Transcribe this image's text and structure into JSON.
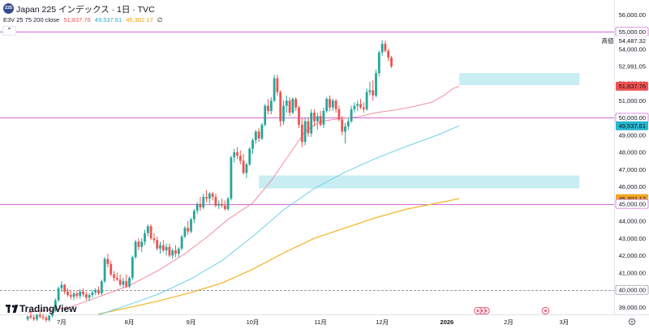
{
  "header": {
    "symbol_badge": "225",
    "title": "Japan 225 インデックス · 1日 · TVC",
    "indicator_label": "E3V 25 75 200 close",
    "ema25_value": "51,837.76",
    "ema75_value": "49,537.61",
    "ema200_value": "45,302.17",
    "settings_glyph": "∅"
  },
  "logo": {
    "text": "TradingView"
  },
  "colors": {
    "up": "#26a69a",
    "down": "#ef5350",
    "ema25": "#f28ea0",
    "ema75": "#6fd0e8",
    "ema200": "#f5b21f",
    "hline": "#d46ad8",
    "zone": "#c8eef3"
  },
  "chart_data": {
    "type": "candlestick",
    "symbol": "Japan 225",
    "timeframe": "1日",
    "ylim": [
      38500,
      56200
    ],
    "y_ticks": [
      39000,
      40000,
      41000,
      42000,
      43000,
      44000,
      45000,
      46000,
      47000,
      48000,
      49000,
      50000,
      51000,
      52000,
      53000,
      54000,
      55000,
      56000
    ],
    "y_tick_labels": [
      "39,000.00",
      "40,000.00",
      "41,000.00",
      "42,000.00",
      "43,000.00",
      "44,000.00",
      "45,000.00",
      "46,000.00",
      "47,000.00",
      "48,000.00",
      "49,000.00",
      "50,000.00",
      "51,000.00",
      "52,000.00",
      "53,000.00",
      "54,000.00",
      "55,000.00",
      "56,000.00"
    ],
    "x_labels": [
      {
        "label": "7月",
        "bar": 18
      },
      {
        "label": "8月",
        "bar": 40
      },
      {
        "label": "9月",
        "bar": 60
      },
      {
        "label": "10月",
        "bar": 80
      },
      {
        "label": "11月",
        "bar": 102
      },
      {
        "label": "12月",
        "bar": 122
      },
      {
        "label": "2026",
        "bar": 143
      },
      {
        "label": "2月",
        "bar": 163
      },
      {
        "label": "3月",
        "bar": 181
      }
    ],
    "price_tags": [
      {
        "label": "55,000.00",
        "value": 55000,
        "style": "hline"
      },
      {
        "label": "54,487.32",
        "value": 54487.32,
        "style": "high",
        "prefix": "高値"
      },
      {
        "label": "52,991.05",
        "value": 52991.05,
        "style": "last"
      },
      {
        "label": "51,837.76",
        "value": 51837.76,
        "style": "ema25"
      },
      {
        "label": "50,000.00",
        "value": 50000,
        "style": "hline"
      },
      {
        "label": "49,537.61",
        "value": 49537.61,
        "style": "ema75"
      },
      {
        "label": "45,302.17",
        "value": 45302.17,
        "style": "ema200"
      },
      {
        "label": "45,000.00",
        "value": 45000,
        "style": "hline"
      },
      {
        "label": "40,000.00",
        "value": 40000,
        "style": "dashed"
      }
    ],
    "horizontal_lines": [
      {
        "value": 55000,
        "style": "solid"
      },
      {
        "value": 50000,
        "style": "solid"
      },
      {
        "value": 45000,
        "style": "solid"
      },
      {
        "value": 40000,
        "style": "dashed"
      }
    ],
    "zones": [
      {
        "from_bar": 147,
        "to_bar": 186,
        "low": 51900,
        "high": 52600
      },
      {
        "from_bar": 82,
        "to_bar": 186,
        "low": 45900,
        "high": 46650
      }
    ],
    "events": [
      {
        "bar": 153,
        "count": 3
      },
      {
        "bar": 175,
        "count": 1
      }
    ],
    "start_bar": 7,
    "candles": [
      {
        "o": 38300,
        "h": 38500,
        "l": 38200,
        "c": 38450
      },
      {
        "o": 38500,
        "h": 38700,
        "l": 38300,
        "c": 38400
      },
      {
        "o": 38400,
        "h": 38550,
        "l": 38200,
        "c": 38300
      },
      {
        "o": 38300,
        "h": 38600,
        "l": 38200,
        "c": 38550
      },
      {
        "o": 38550,
        "h": 38700,
        "l": 38350,
        "c": 38450
      },
      {
        "o": 38450,
        "h": 38600,
        "l": 38250,
        "c": 38380
      },
      {
        "o": 38380,
        "h": 38500,
        "l": 38150,
        "c": 38250
      },
      {
        "o": 38250,
        "h": 38550,
        "l": 38150,
        "c": 38500
      },
      {
        "o": 38500,
        "h": 38750,
        "l": 38400,
        "c": 38650
      },
      {
        "o": 38800,
        "h": 39500,
        "l": 38700,
        "c": 39400
      },
      {
        "o": 39400,
        "h": 40200,
        "l": 39300,
        "c": 40100
      },
      {
        "o": 40100,
        "h": 40500,
        "l": 39900,
        "c": 40300
      },
      {
        "o": 40300,
        "h": 40350,
        "l": 39750,
        "c": 39900
      },
      {
        "o": 39900,
        "h": 40100,
        "l": 39600,
        "c": 39700
      },
      {
        "o": 39700,
        "h": 40000,
        "l": 39450,
        "c": 39600
      },
      {
        "o": 39600,
        "h": 39900,
        "l": 39400,
        "c": 39800
      },
      {
        "o": 39800,
        "h": 39950,
        "l": 39500,
        "c": 39650
      },
      {
        "o": 39650,
        "h": 40050,
        "l": 39500,
        "c": 39900
      },
      {
        "o": 39900,
        "h": 40100,
        "l": 39600,
        "c": 39750
      },
      {
        "o": 39750,
        "h": 39900,
        "l": 39400,
        "c": 39550
      },
      {
        "o": 39550,
        "h": 39800,
        "l": 39350,
        "c": 39700
      },
      {
        "o": 39700,
        "h": 40000,
        "l": 39550,
        "c": 39850
      },
      {
        "o": 39850,
        "h": 40100,
        "l": 39700,
        "c": 40000
      },
      {
        "o": 40000,
        "h": 40200,
        "l": 39700,
        "c": 39800
      },
      {
        "o": 39800,
        "h": 40600,
        "l": 39700,
        "c": 40500
      },
      {
        "o": 40500,
        "h": 41900,
        "l": 40400,
        "c": 41800
      },
      {
        "o": 41800,
        "h": 42100,
        "l": 41300,
        "c": 41500
      },
      {
        "o": 41500,
        "h": 41700,
        "l": 40800,
        "c": 40900
      },
      {
        "o": 40900,
        "h": 41100,
        "l": 40500,
        "c": 40700
      },
      {
        "o": 40700,
        "h": 41000,
        "l": 40500,
        "c": 40600
      },
      {
        "o": 40600,
        "h": 40900,
        "l": 40200,
        "c": 40300
      },
      {
        "o": 40300,
        "h": 40700,
        "l": 40100,
        "c": 40500
      },
      {
        "o": 40500,
        "h": 40900,
        "l": 40100,
        "c": 40200
      },
      {
        "o": 40200,
        "h": 40800,
        "l": 40100,
        "c": 40700
      },
      {
        "o": 40700,
        "h": 42000,
        "l": 40600,
        "c": 41900
      },
      {
        "o": 41900,
        "h": 42900,
        "l": 41800,
        "c": 42800
      },
      {
        "o": 42800,
        "h": 43000,
        "l": 42300,
        "c": 42500
      },
      {
        "o": 42500,
        "h": 43000,
        "l": 42200,
        "c": 42800
      },
      {
        "o": 42800,
        "h": 43500,
        "l": 42600,
        "c": 43300
      },
      {
        "o": 43300,
        "h": 43800,
        "l": 43100,
        "c": 43700
      },
      {
        "o": 43700,
        "h": 43800,
        "l": 42900,
        "c": 43000
      },
      {
        "o": 43000,
        "h": 43300,
        "l": 42700,
        "c": 42900
      },
      {
        "o": 42900,
        "h": 43100,
        "l": 42300,
        "c": 42400
      },
      {
        "o": 42400,
        "h": 42800,
        "l": 42100,
        "c": 42600
      },
      {
        "o": 42600,
        "h": 42900,
        "l": 42200,
        "c": 42300
      },
      {
        "o": 42300,
        "h": 42700,
        "l": 42000,
        "c": 42500
      },
      {
        "o": 42500,
        "h": 42700,
        "l": 41900,
        "c": 42000
      },
      {
        "o": 42000,
        "h": 42400,
        "l": 41800,
        "c": 42300
      },
      {
        "o": 42300,
        "h": 42600,
        "l": 41900,
        "c": 42100
      },
      {
        "o": 42100,
        "h": 42500,
        "l": 41900,
        "c": 42400
      },
      {
        "o": 42400,
        "h": 43200,
        "l": 42300,
        "c": 43100
      },
      {
        "o": 43100,
        "h": 43700,
        "l": 43000,
        "c": 43600
      },
      {
        "o": 43600,
        "h": 44000,
        "l": 43200,
        "c": 43400
      },
      {
        "o": 43400,
        "h": 44200,
        "l": 43300,
        "c": 44100
      },
      {
        "o": 44100,
        "h": 44700,
        "l": 43900,
        "c": 44600
      },
      {
        "o": 44600,
        "h": 45100,
        "l": 44400,
        "c": 45000
      },
      {
        "o": 45000,
        "h": 45400,
        "l": 44600,
        "c": 44800
      },
      {
        "o": 44800,
        "h": 45600,
        "l": 44700,
        "c": 45400
      },
      {
        "o": 45400,
        "h": 45800,
        "l": 45100,
        "c": 45300
      },
      {
        "o": 45300,
        "h": 45700,
        "l": 45000,
        "c": 45600
      },
      {
        "o": 45600,
        "h": 45700,
        "l": 45200,
        "c": 45400
      },
      {
        "o": 45400,
        "h": 45600,
        "l": 44800,
        "c": 44900
      },
      {
        "o": 44900,
        "h": 45200,
        "l": 44700,
        "c": 45000
      },
      {
        "o": 45000,
        "h": 45300,
        "l": 44800,
        "c": 44900
      },
      {
        "o": 44900,
        "h": 45200,
        "l": 44600,
        "c": 44700
      },
      {
        "o": 44700,
        "h": 45400,
        "l": 44600,
        "c": 45300
      },
      {
        "o": 45300,
        "h": 47800,
        "l": 45200,
        "c": 47700
      },
      {
        "o": 47700,
        "h": 48200,
        "l": 47400,
        "c": 48000
      },
      {
        "o": 48000,
        "h": 48300,
        "l": 47600,
        "c": 47800
      },
      {
        "o": 47800,
        "h": 48100,
        "l": 47300,
        "c": 47500
      },
      {
        "o": 47500,
        "h": 47900,
        "l": 46700,
        "c": 46800
      },
      {
        "o": 46800,
        "h": 47400,
        "l": 46500,
        "c": 47300
      },
      {
        "o": 47300,
        "h": 48300,
        "l": 47200,
        "c": 48200
      },
      {
        "o": 48200,
        "h": 48800,
        "l": 47900,
        "c": 48700
      },
      {
        "o": 48700,
        "h": 49300,
        "l": 48500,
        "c": 49200
      },
      {
        "o": 49200,
        "h": 49400,
        "l": 48600,
        "c": 48800
      },
      {
        "o": 48800,
        "h": 49700,
        "l": 48700,
        "c": 49600
      },
      {
        "o": 49600,
        "h": 50800,
        "l": 49500,
        "c": 50700
      },
      {
        "o": 50700,
        "h": 51100,
        "l": 50200,
        "c": 50400
      },
      {
        "o": 50400,
        "h": 51200,
        "l": 50200,
        "c": 51000
      },
      {
        "o": 51000,
        "h": 52500,
        "l": 50900,
        "c": 52300
      },
      {
        "o": 52300,
        "h": 52500,
        "l": 51300,
        "c": 51500
      },
      {
        "o": 51500,
        "h": 51600,
        "l": 49500,
        "c": 49800
      },
      {
        "o": 49800,
        "h": 51000,
        "l": 49600,
        "c": 50700
      },
      {
        "o": 50700,
        "h": 51300,
        "l": 50300,
        "c": 51000
      },
      {
        "o": 51000,
        "h": 51200,
        "l": 50100,
        "c": 50300
      },
      {
        "o": 50300,
        "h": 51200,
        "l": 50200,
        "c": 51100
      },
      {
        "o": 51100,
        "h": 51200,
        "l": 50400,
        "c": 50600
      },
      {
        "o": 50600,
        "h": 50700,
        "l": 49400,
        "c": 49600
      },
      {
        "o": 49600,
        "h": 50000,
        "l": 48300,
        "c": 48600
      },
      {
        "o": 48600,
        "h": 50000,
        "l": 48400,
        "c": 49800
      },
      {
        "o": 49800,
        "h": 50000,
        "l": 48900,
        "c": 49100
      },
      {
        "o": 49100,
        "h": 50500,
        "l": 48900,
        "c": 50300
      },
      {
        "o": 50300,
        "h": 50500,
        "l": 49500,
        "c": 49800
      },
      {
        "o": 49800,
        "h": 50300,
        "l": 49300,
        "c": 50100
      },
      {
        "o": 50100,
        "h": 50400,
        "l": 49500,
        "c": 49600
      },
      {
        "o": 49600,
        "h": 50600,
        "l": 49400,
        "c": 50400
      },
      {
        "o": 50400,
        "h": 51200,
        "l": 50300,
        "c": 51100
      },
      {
        "o": 51100,
        "h": 51300,
        "l": 50400,
        "c": 50600
      },
      {
        "o": 50600,
        "h": 51100,
        "l": 50400,
        "c": 51000
      },
      {
        "o": 51000,
        "h": 51100,
        "l": 50300,
        "c": 50500
      },
      {
        "o": 50500,
        "h": 50700,
        "l": 49800,
        "c": 49900
      },
      {
        "o": 49900,
        "h": 50100,
        "l": 49000,
        "c": 49200
      },
      {
        "o": 49200,
        "h": 49700,
        "l": 48500,
        "c": 49500
      },
      {
        "o": 49500,
        "h": 50000,
        "l": 49300,
        "c": 49800
      },
      {
        "o": 49800,
        "h": 50700,
        "l": 49700,
        "c": 50500
      },
      {
        "o": 50500,
        "h": 50900,
        "l": 50300,
        "c": 50700
      },
      {
        "o": 50700,
        "h": 51000,
        "l": 50400,
        "c": 50800
      },
      {
        "o": 50800,
        "h": 51100,
        "l": 50500,
        "c": 50600
      },
      {
        "o": 50600,
        "h": 50900,
        "l": 50300,
        "c": 50500
      },
      {
        "o": 50500,
        "h": 51700,
        "l": 50400,
        "c": 51500
      },
      {
        "o": 51500,
        "h": 52100,
        "l": 51300,
        "c": 51600
      },
      {
        "o": 51600,
        "h": 52200,
        "l": 51000,
        "c": 51300
      },
      {
        "o": 51300,
        "h": 52800,
        "l": 51200,
        "c": 52600
      },
      {
        "o": 52600,
        "h": 53900,
        "l": 52400,
        "c": 53800
      },
      {
        "o": 53800,
        "h": 54500,
        "l": 53600,
        "c": 54300
      },
      {
        "o": 54300,
        "h": 54487,
        "l": 53800,
        "c": 53900
      },
      {
        "o": 53900,
        "h": 54000,
        "l": 53300,
        "c": 53500
      },
      {
        "o": 53500,
        "h": 53600,
        "l": 52900,
        "c": 52991
      }
    ],
    "ema25_points": [
      [
        7,
        38700
      ],
      [
        20,
        38950
      ],
      [
        30,
        39600
      ],
      [
        40,
        40250
      ],
      [
        50,
        41200
      ],
      [
        58,
        42100
      ],
      [
        65,
        43050
      ],
      [
        72,
        44100
      ],
      [
        80,
        45050
      ],
      [
        86,
        46350
      ],
      [
        92,
        47900
      ],
      [
        97,
        49200
      ],
      [
        102,
        49800
      ],
      [
        108,
        49950
      ],
      [
        114,
        50050
      ],
      [
        120,
        50300
      ],
      [
        126,
        50450
      ],
      [
        132,
        50650
      ],
      [
        138,
        50900
      ],
      [
        142,
        51300
      ],
      [
        145,
        51700
      ],
      [
        147,
        51838
      ]
    ],
    "ema75_points": [
      [
        30,
        38550
      ],
      [
        40,
        39150
      ],
      [
        50,
        39800
      ],
      [
        60,
        40650
      ],
      [
        70,
        41700
      ],
      [
        80,
        43100
      ],
      [
        90,
        44650
      ],
      [
        100,
        45900
      ],
      [
        110,
        46850
      ],
      [
        120,
        47650
      ],
      [
        130,
        48350
      ],
      [
        140,
        49000
      ],
      [
        147,
        49538
      ]
    ],
    "ema200_points": [
      [
        30,
        38600
      ],
      [
        40,
        38980
      ],
      [
        50,
        39380
      ],
      [
        60,
        39850
      ],
      [
        70,
        40400
      ],
      [
        80,
        41200
      ],
      [
        90,
        42150
      ],
      [
        100,
        43000
      ],
      [
        110,
        43600
      ],
      [
        120,
        44200
      ],
      [
        130,
        44700
      ],
      [
        140,
        45050
      ],
      [
        147,
        45302
      ]
    ]
  }
}
